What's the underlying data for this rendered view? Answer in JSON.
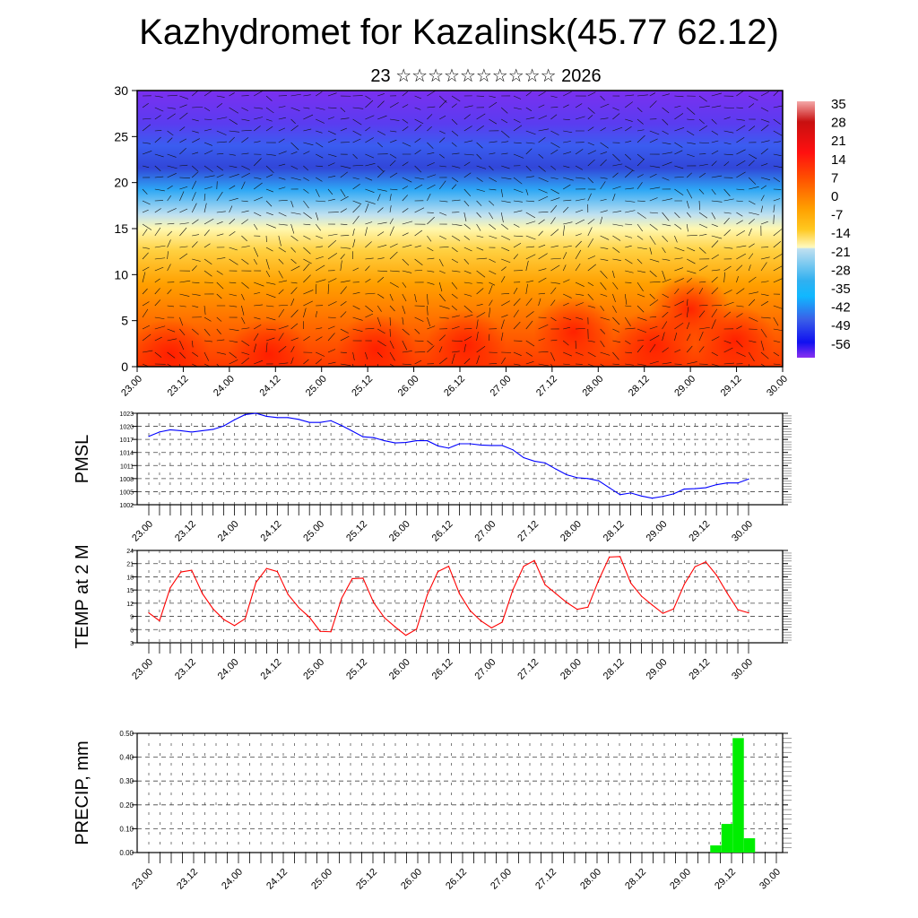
{
  "title": "Kazhydromet for Kazalinsk(45.77 62.12)",
  "subtitle": "23 ☆☆☆☆☆☆☆☆☆☆ 2026",
  "chart_data": [
    {
      "type": "heatmap",
      "name": "vertical temperature cross-section with wind vectors",
      "ylim": [
        0,
        30
      ],
      "yticks": [
        "0",
        "5",
        "10",
        "15",
        "20",
        "25",
        "30"
      ],
      "xticks": [
        "23.00",
        "23.12",
        "24.00",
        "24.12",
        "25.00",
        "25.12",
        "26.00",
        "26.12",
        "27.00",
        "27.12",
        "28.00",
        "28.12",
        "29.00",
        "29.12",
        "30.00"
      ],
      "colorbar_labels": [
        "35",
        "28",
        "21",
        "14",
        "7",
        "0",
        "-7",
        "-14",
        "-21",
        "-28",
        "-35",
        "-42",
        "-49",
        "-56"
      ],
      "colorbar_range": [
        -60,
        38
      ]
    },
    {
      "type": "line",
      "ylabel": "PMSL",
      "ylim": [
        1002,
        1023
      ],
      "yticks": [
        "1002",
        "1005",
        "1008",
        "1011",
        "1014",
        "1017",
        "1020",
        "1023"
      ],
      "xticks": [
        "23.00",
        "23.12",
        "24.00",
        "24.12",
        "25.00",
        "25.12",
        "26.00",
        "26.12",
        "27.00",
        "27.12",
        "28.00",
        "28.12",
        "29.00",
        "29.12",
        "30.00"
      ],
      "step_hours": 3,
      "color": "#0000ff",
      "values": [
        1017.7,
        1018.7,
        1019.2,
        1019.0,
        1018.7,
        1019.0,
        1019.3,
        1020.1,
        1021.5,
        1022.7,
        1023.0,
        1022.3,
        1022.0,
        1022.0,
        1021.6,
        1020.9,
        1020.9,
        1021.3,
        1020.2,
        1018.9,
        1017.6,
        1017.4,
        1016.7,
        1016.2,
        1016.3,
        1016.7,
        1016.7,
        1015.5,
        1015.0,
        1016.0,
        1016.0,
        1015.7,
        1015.6,
        1015.6,
        1014.6,
        1012.8,
        1012.0,
        1011.6,
        1010.2,
        1008.9,
        1008.2,
        1008.0,
        1007.5,
        1005.9,
        1004.3,
        1004.7,
        1004.0,
        1003.5,
        1003.9,
        1004.5,
        1005.6,
        1005.7,
        1005.9,
        1006.6,
        1007.0,
        1007.0,
        1007.9
      ]
    },
    {
      "type": "line",
      "ylabel": "TEMP at 2 M",
      "ylim": [
        3,
        24
      ],
      "yticks": [
        "3",
        "6",
        "9",
        "12",
        "15",
        "18",
        "21",
        "24"
      ],
      "xticks": [
        "23.00",
        "23.12",
        "24.00",
        "24.12",
        "25.00",
        "25.12",
        "26.00",
        "26.12",
        "27.00",
        "27.12",
        "28.00",
        "28.12",
        "29.00",
        "29.12",
        "30.00"
      ],
      "step_hours": 3,
      "color": "#ff0000",
      "values": [
        9.8,
        8.0,
        15.5,
        19.1,
        19.5,
        14.2,
        10.7,
        8.3,
        6.9,
        8.5,
        16.7,
        19.9,
        19.2,
        14.0,
        11.0,
        8.8,
        5.6,
        5.5,
        13.1,
        17.6,
        17.7,
        12.1,
        8.7,
        6.6,
        4.7,
        6.1,
        13.9,
        19.2,
        20.4,
        14.2,
        10.3,
        8.0,
        6.4,
        7.7,
        15.1,
        20.4,
        21.7,
        16.2,
        14.2,
        12.2,
        10.6,
        11.1,
        17.2,
        22.5,
        22.6,
        16.6,
        13.6,
        11.6,
        9.7,
        10.7,
        16.3,
        20.3,
        21.4,
        18.4,
        14.3,
        10.5,
        9.8
      ]
    },
    {
      "type": "bar",
      "ylabel": "PRECIP, mm",
      "ylim": [
        0,
        0.5
      ],
      "yticks": [
        "0.00",
        "0.10",
        "0.20",
        "0.30",
        "0.40",
        "0.50"
      ],
      "xticks": [
        "23.00",
        "23.12",
        "24.00",
        "24.12",
        "25.00",
        "25.12",
        "26.00",
        "26.12",
        "27.00",
        "27.12",
        "28.00",
        "28.12",
        "29.00",
        "29.12",
        "30.00"
      ],
      "step_hours": 3,
      "color": "#00ee00",
      "nonzero": [
        {
          "index": 51,
          "value": 0.03
        },
        {
          "index": 52,
          "value": 0.12
        },
        {
          "index": 53,
          "value": 0.48
        },
        {
          "index": 54,
          "value": 0.06
        }
      ]
    }
  ]
}
